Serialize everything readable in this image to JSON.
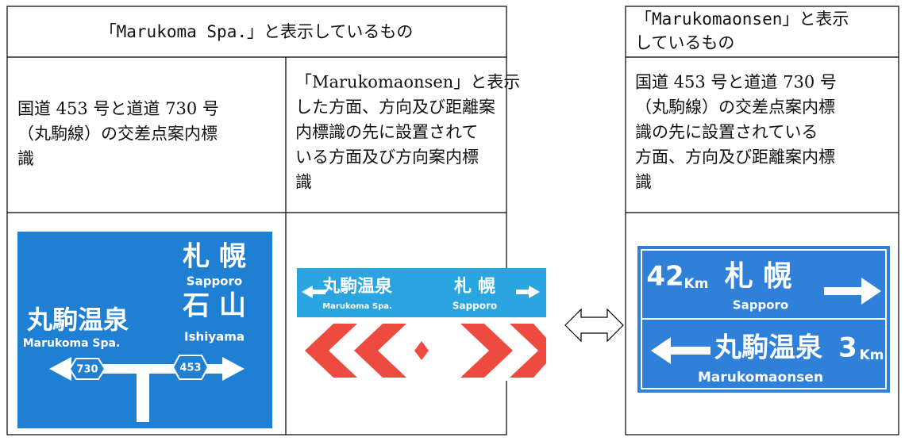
{
  "left_table": {
    "header": "「Marukoma Spa.」と表示しているもの",
    "description_1_lines": [
      "国道 453 号と道道 730 号",
      "（丸駒線）の交差点案内標",
      "識"
    ],
    "description_2_lines": [
      "「Marukomaonsen」と表示",
      "した方面、方向及び距離案",
      "内標識の先に設置されて",
      "いる方面及び方向案内標",
      "識"
    ],
    "sign_1": {
      "sapporo_kanji": "札 幌",
      "sapporo": "Sapporo",
      "ishiyama_kanji": "石 山",
      "ishiyama": "Ishiyama",
      "marukoma_kanji": "丸駒温泉",
      "marukoma": "Marukoma Spa.",
      "route_left": "730",
      "route_right": "453"
    },
    "sign_2": {
      "marukoma_kanji": "丸駒温泉",
      "marukoma": "Marukoma Spa.",
      "sapporo_kanji": "札 幌",
      "sapporo": "Sapporo"
    }
  },
  "right_table": {
    "header_lines": [
      "「Marukomaonsen」と表示",
      "しているもの"
    ],
    "description_lines": [
      "国道 453 号と道道 730 号",
      "（丸駒線）の交差点案内標",
      "識の先に設置されている",
      "方面、方向及び距離案内標",
      "識"
    ],
    "sign": {
      "sapporo_distance": "42",
      "sapporo_unit": "Km",
      "sapporo_kanji": "札 幌",
      "sapporo": "Sapporo",
      "marukoma_kanji": "丸駒温泉",
      "marukoma_distance": "3",
      "marukoma_unit": "Km",
      "marukoma": "Marukomaonsen"
    }
  }
}
